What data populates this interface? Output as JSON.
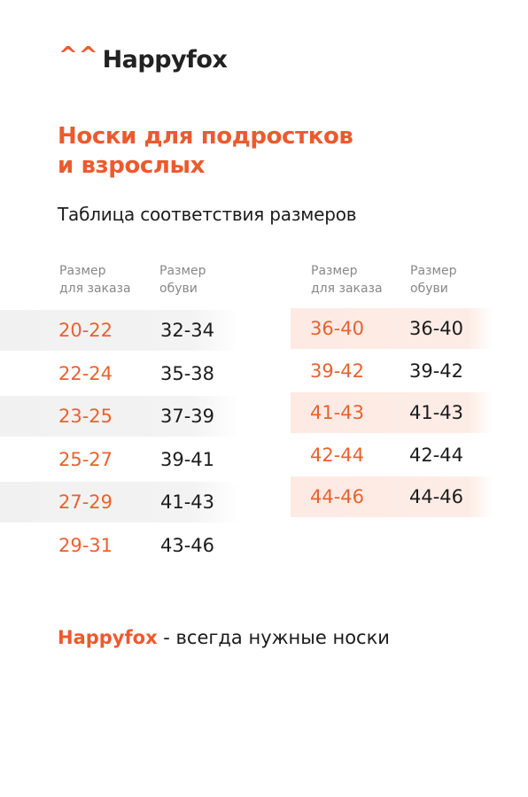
{
  "logo": {
    "mark": "^^",
    "name": "Happyfox"
  },
  "title_line1": "Носки для подростков",
  "title_line2": "и взрослых",
  "subtitle": "Таблица соответствия размеров",
  "headers": {
    "order": "Размер\nдля заказа",
    "shoe": "Размер\nобуви"
  },
  "left_table": [
    {
      "order": "20-22",
      "shoe": "32-34",
      "shaded": true
    },
    {
      "order": "22-24",
      "shoe": "35-38",
      "shaded": false
    },
    {
      "order": "23-25",
      "shoe": "37-39",
      "shaded": true
    },
    {
      "order": "25-27",
      "shoe": "39-41",
      "shaded": false
    },
    {
      "order": "27-29",
      "shoe": "41-43",
      "shaded": true
    },
    {
      "order": "29-31",
      "shoe": "43-46",
      "shaded": false
    }
  ],
  "right_table": [
    {
      "order": "36-40",
      "shoe": "36-40",
      "shaded": true
    },
    {
      "order": "39-42",
      "shoe": "39-42",
      "shaded": false
    },
    {
      "order": "41-43",
      "shoe": "41-43",
      "shaded": true
    },
    {
      "order": "42-44",
      "shoe": "42-44",
      "shaded": false
    },
    {
      "order": "44-46",
      "shoe": "44-46",
      "shaded": true
    }
  ],
  "footer": {
    "brand": "Happyfox",
    "tagline": " - всегда нужные носки"
  },
  "colors": {
    "accent": "#ec5a2e",
    "left_shade": "#f2f2f2",
    "right_shade": "#fdeae3"
  }
}
